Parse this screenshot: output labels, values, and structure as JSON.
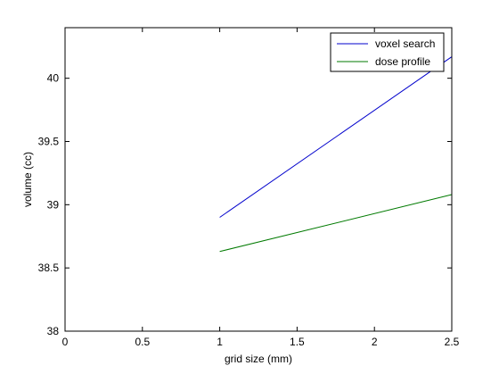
{
  "chart_data": {
    "type": "line",
    "title": "",
    "xlabel": "grid size (mm)",
    "ylabel": "volume (cc)",
    "xlim": [
      0,
      2.5
    ],
    "ylim": [
      38,
      40.4
    ],
    "xticks": [
      0,
      0.5,
      1,
      1.5,
      2,
      2.5
    ],
    "xtick_labels": [
      "0",
      "0.5",
      "1",
      "1.5",
      "2",
      "2.5"
    ],
    "yticks": [
      38,
      38.5,
      39,
      39.5,
      40
    ],
    "ytick_labels": [
      "38",
      "38.5",
      "39",
      "39.5",
      "40"
    ],
    "grid": false,
    "legend_position": "top-right",
    "series": [
      {
        "name": "voxel search",
        "color": "#0000cc",
        "x": [
          1,
          2.5
        ],
        "y": [
          38.9,
          40.17
        ]
      },
      {
        "name": "dose profile",
        "color": "#007a00",
        "x": [
          1,
          2.5
        ],
        "y": [
          38.63,
          39.08
        ]
      }
    ]
  }
}
